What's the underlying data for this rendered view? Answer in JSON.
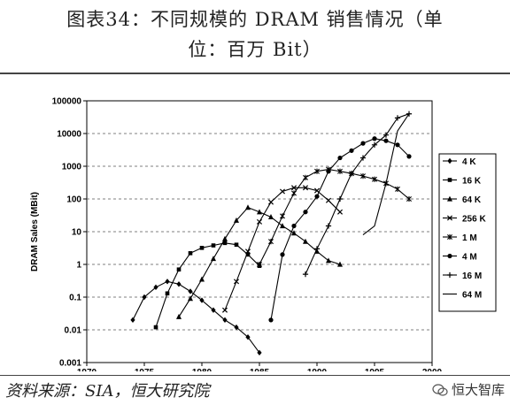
{
  "title_line1": "图表34：不同规模的 DRAM 销售情况（单",
  "title_line2": "位：百万 Bit）",
  "source": "资料来源：SIA，恒大研究院",
  "watermark": "恒大智库",
  "watermark_icon": "wechat-icon",
  "chart_data": {
    "type": "line",
    "title": "",
    "xlabel": "",
    "ylabel": "DRAM Sales (MBit)",
    "xlim": [
      1970,
      2000
    ],
    "ylim": [
      0.001,
      100000
    ],
    "yscale": "log",
    "x_ticks": [
      1970,
      1975,
      1980,
      1985,
      1990,
      1995,
      2000
    ],
    "x_tick_labels": [
      "1970",
      "1975",
      "1980",
      "1985",
      "1990",
      "1995",
      "2000"
    ],
    "y_ticks": [
      0.001,
      0.01,
      0.1,
      1,
      10,
      100,
      1000,
      10000,
      100000
    ],
    "y_tick_labels": [
      "0.001",
      "0.01",
      "0.1",
      "1",
      "10",
      "100",
      "1000",
      "10000",
      "100000"
    ],
    "grid": "horizontal dashed",
    "legend_position": "right",
    "series": [
      {
        "name": "4 K",
        "marker": "diamond",
        "x": [
          1974,
          1975,
          1976,
          1977,
          1978,
          1979,
          1980,
          1981,
          1982,
          1983,
          1984,
          1985
        ],
        "y": [
          0.02,
          0.1,
          0.2,
          0.3,
          0.25,
          0.15,
          0.08,
          0.04,
          0.02,
          0.012,
          0.006,
          0.002
        ]
      },
      {
        "name": "16 K",
        "marker": "square",
        "x": [
          1976,
          1977,
          1978,
          1979,
          1980,
          1981,
          1982,
          1983,
          1984,
          1985
        ],
        "y": [
          0.012,
          0.13,
          0.7,
          2.2,
          3.2,
          3.8,
          4.5,
          4,
          2,
          0.9
        ]
      },
      {
        "name": "64 K",
        "marker": "triangle",
        "x": [
          1978,
          1979,
          1980,
          1981,
          1982,
          1983,
          1984,
          1985,
          1986,
          1987,
          1988,
          1989,
          1990,
          1991,
          1992
        ],
        "y": [
          0.025,
          0.09,
          0.35,
          1.5,
          6,
          22,
          55,
          40,
          28,
          15,
          9,
          5,
          2.5,
          1.3,
          1
        ]
      },
      {
        "name": "256 K",
        "marker": "x",
        "x": [
          1982,
          1983,
          1984,
          1985,
          1986,
          1987,
          1988,
          1989,
          1990,
          1991,
          1992
        ],
        "y": [
          0.04,
          0.3,
          2.5,
          20,
          80,
          170,
          220,
          220,
          180,
          90,
          40
        ]
      },
      {
        "name": "1 M",
        "marker": "asterisk",
        "x": [
          1985,
          1986,
          1987,
          1988,
          1989,
          1990,
          1991,
          1992,
          1993,
          1994,
          1995,
          1996,
          1997,
          1998
        ],
        "y": [
          1,
          5,
          30,
          150,
          450,
          700,
          800,
          700,
          600,
          500,
          400,
          300,
          200,
          100
        ]
      },
      {
        "name": "4 M",
        "marker": "circle",
        "x": [
          1986,
          1987,
          1988,
          1989,
          1990,
          1991,
          1992,
          1993,
          1994,
          1995,
          1996,
          1997,
          1998
        ],
        "y": [
          0.02,
          2,
          15,
          40,
          120,
          700,
          1800,
          3000,
          5000,
          7000,
          6000,
          4500,
          2000
        ]
      },
      {
        "name": "16 M",
        "marker": "plus",
        "x": [
          1989,
          1990,
          1991,
          1992,
          1993,
          1994,
          1995,
          1996,
          1997,
          1998
        ],
        "y": [
          0.5,
          3,
          15,
          100,
          600,
          1800,
          4500,
          9000,
          30000,
          40000
        ]
      },
      {
        "name": "64 M",
        "marker": "dash",
        "x": [
          1994,
          1995,
          1996,
          1997,
          1998
        ],
        "y": [
          8,
          15,
          300,
          12000,
          40000
        ]
      }
    ]
  }
}
